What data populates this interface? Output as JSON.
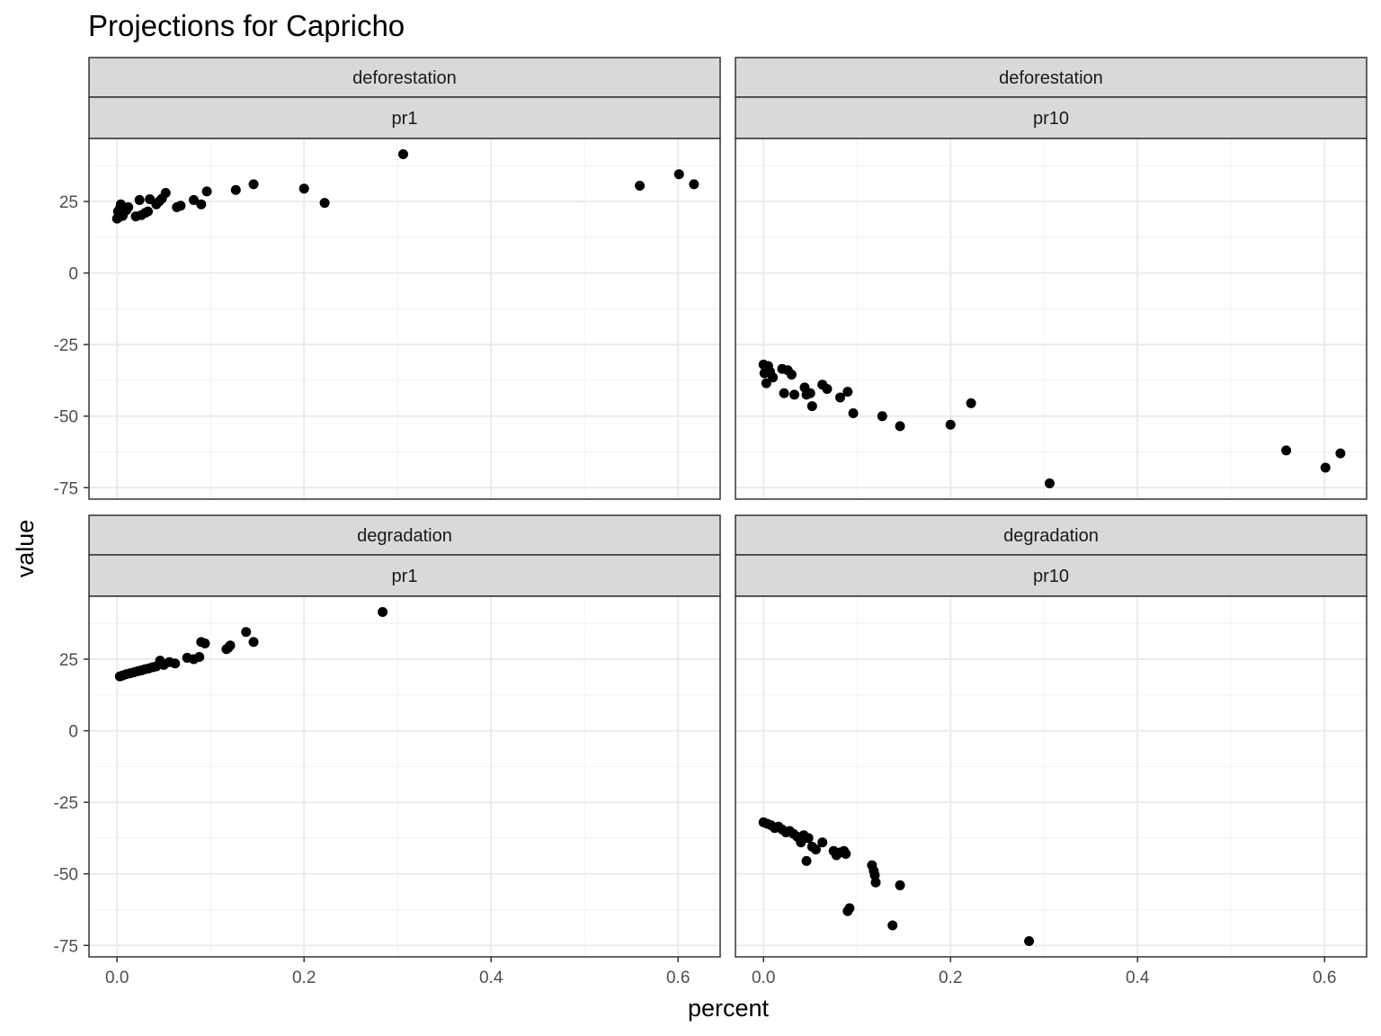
{
  "chart_data": {
    "type": "scatter",
    "title": "Projections for Capricho",
    "xlabel": "percent",
    "ylabel": "value",
    "xlim": [
      -0.03,
      0.645
    ],
    "ylim": [
      -79,
      47
    ],
    "x_ticks": [
      0.0,
      0.2,
      0.4,
      0.6
    ],
    "x_tick_labels": [
      "0.0",
      "0.2",
      "0.4",
      "0.6"
    ],
    "y_ticks": [
      -75,
      -50,
      -25,
      0,
      25
    ],
    "y_tick_labels": [
      "-75",
      "-50",
      "-25",
      "0",
      "25"
    ],
    "grid": true,
    "point_color": "#000000",
    "panels": [
      {
        "strip_top": "deforestation",
        "strip_bottom": "pr1",
        "points": [
          [
            0.0,
            19.0
          ],
          [
            0.001,
            21.5
          ],
          [
            0.002,
            19.5
          ],
          [
            0.003,
            22.5
          ],
          [
            0.004,
            24.0
          ],
          [
            0.006,
            20.0
          ],
          [
            0.008,
            21.5
          ],
          [
            0.01,
            22.0
          ],
          [
            0.012,
            23.0
          ],
          [
            0.02,
            19.8
          ],
          [
            0.024,
            25.5
          ],
          [
            0.026,
            20.2
          ],
          [
            0.03,
            21.0
          ],
          [
            0.033,
            21.5
          ],
          [
            0.035,
            25.8
          ],
          [
            0.042,
            24.0
          ],
          [
            0.045,
            25.0
          ],
          [
            0.048,
            26.0
          ],
          [
            0.052,
            28.0
          ],
          [
            0.064,
            23.0
          ],
          [
            0.068,
            23.5
          ],
          [
            0.082,
            25.5
          ],
          [
            0.09,
            24.0
          ],
          [
            0.096,
            28.5
          ],
          [
            0.127,
            29.0
          ],
          [
            0.146,
            31.0
          ],
          [
            0.2,
            29.5
          ],
          [
            0.222,
            24.5
          ],
          [
            0.306,
            41.5
          ],
          [
            0.559,
            30.5
          ],
          [
            0.601,
            34.5
          ],
          [
            0.617,
            31.0
          ]
        ]
      },
      {
        "strip_top": "deforestation",
        "strip_bottom": "pr10",
        "points": [
          [
            0.0,
            -32.0
          ],
          [
            0.001,
            -35.0
          ],
          [
            0.003,
            -38.5
          ],
          [
            0.005,
            -32.5
          ],
          [
            0.007,
            -34.5
          ],
          [
            0.01,
            -36.5
          ],
          [
            0.02,
            -33.5
          ],
          [
            0.022,
            -42.0
          ],
          [
            0.026,
            -34.0
          ],
          [
            0.03,
            -35.5
          ],
          [
            0.033,
            -42.5
          ],
          [
            0.044,
            -40.0
          ],
          [
            0.046,
            -42.5
          ],
          [
            0.05,
            -42.0
          ],
          [
            0.052,
            -46.5
          ],
          [
            0.063,
            -39.0
          ],
          [
            0.068,
            -40.5
          ],
          [
            0.082,
            -43.5
          ],
          [
            0.09,
            -41.5
          ],
          [
            0.096,
            -49.0
          ],
          [
            0.127,
            -50.0
          ],
          [
            0.146,
            -53.5
          ],
          [
            0.2,
            -53.0
          ],
          [
            0.222,
            -45.5
          ],
          [
            0.306,
            -73.5
          ],
          [
            0.559,
            -62.0
          ],
          [
            0.601,
            -68.0
          ],
          [
            0.617,
            -63.0
          ]
        ]
      },
      {
        "strip_top": "degradation",
        "strip_bottom": "pr1",
        "points": [
          [
            0.003,
            19.0
          ],
          [
            0.006,
            19.3
          ],
          [
            0.01,
            19.8
          ],
          [
            0.014,
            20.1
          ],
          [
            0.018,
            20.4
          ],
          [
            0.022,
            20.8
          ],
          [
            0.026,
            21.1
          ],
          [
            0.03,
            21.5
          ],
          [
            0.034,
            21.8
          ],
          [
            0.038,
            22.2
          ],
          [
            0.042,
            22.5
          ],
          [
            0.046,
            24.5
          ],
          [
            0.05,
            23.0
          ],
          [
            0.056,
            24.0
          ],
          [
            0.062,
            23.5
          ],
          [
            0.075,
            25.5
          ],
          [
            0.082,
            25.0
          ],
          [
            0.088,
            25.8
          ],
          [
            0.09,
            31.0
          ],
          [
            0.094,
            30.5
          ],
          [
            0.117,
            28.5
          ],
          [
            0.119,
            29.0
          ],
          [
            0.121,
            29.8
          ],
          [
            0.138,
            34.5
          ],
          [
            0.146,
            31.0
          ],
          [
            0.284,
            41.5
          ]
        ]
      },
      {
        "strip_top": "degradation",
        "strip_bottom": "pr10",
        "points": [
          [
            0.0,
            -32.0
          ],
          [
            0.004,
            -32.5
          ],
          [
            0.008,
            -33.0
          ],
          [
            0.012,
            -34.0
          ],
          [
            0.016,
            -33.5
          ],
          [
            0.02,
            -34.5
          ],
          [
            0.024,
            -35.5
          ],
          [
            0.028,
            -35.0
          ],
          [
            0.032,
            -36.0
          ],
          [
            0.036,
            -37.0
          ],
          [
            0.04,
            -39.0
          ],
          [
            0.043,
            -36.5
          ],
          [
            0.046,
            -45.5
          ],
          [
            0.048,
            -37.5
          ],
          [
            0.052,
            -40.5
          ],
          [
            0.056,
            -41.5
          ],
          [
            0.063,
            -39.0
          ],
          [
            0.075,
            -42.0
          ],
          [
            0.078,
            -43.5
          ],
          [
            0.082,
            -42.5
          ],
          [
            0.086,
            -42.0
          ],
          [
            0.088,
            -43.0
          ],
          [
            0.09,
            -63.0
          ],
          [
            0.092,
            -62.0
          ],
          [
            0.116,
            -47.0
          ],
          [
            0.118,
            -49.0
          ],
          [
            0.119,
            -50.5
          ],
          [
            0.12,
            -53.0
          ],
          [
            0.138,
            -68.0
          ],
          [
            0.146,
            -54.0
          ],
          [
            0.284,
            -73.5
          ]
        ]
      }
    ]
  }
}
